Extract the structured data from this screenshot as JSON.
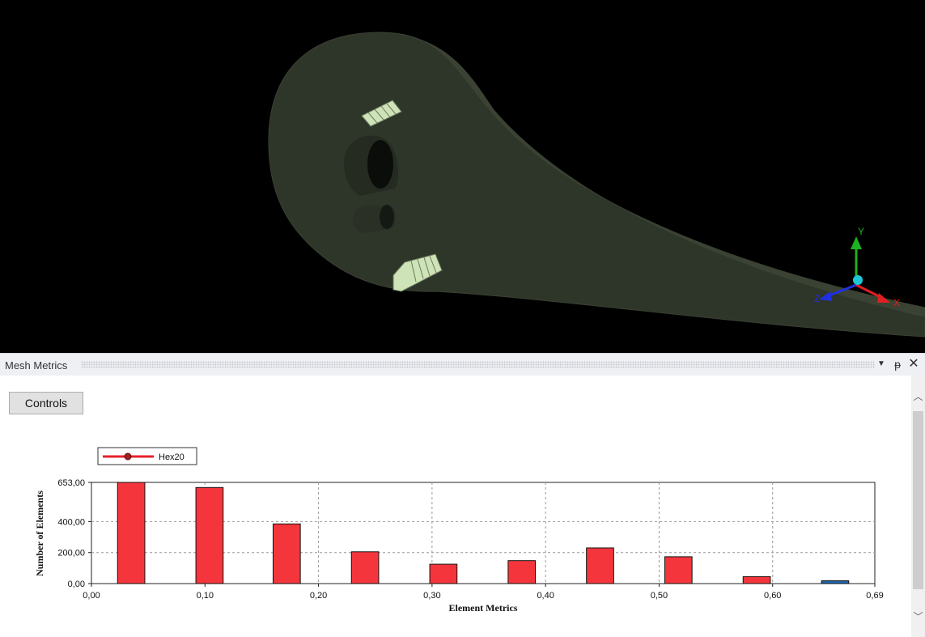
{
  "viewport": {
    "axis_labels": {
      "x": "X",
      "y": "Y",
      "z": "Z"
    },
    "colors": {
      "model": "#2e3529",
      "model_edge": "#3d4536",
      "mesh": "#cfe3b8",
      "axis_x": "#e02020",
      "axis_y": "#1fb01f",
      "axis_z": "#2030e0",
      "axis_center": "#1ec7d6"
    }
  },
  "panel": {
    "title": "Mesh Metrics",
    "pin_icon": "pin-icon",
    "close_icon": "close-icon",
    "menu_icon": "dropdown-arrow-icon",
    "controls_label": "Controls"
  },
  "chart_data": {
    "type": "bar",
    "legend": "Hex20",
    "xlabel": "Element Metrics",
    "ylabel": "Number of Elements",
    "xlim": [
      0.0,
      0.69
    ],
    "ylim": [
      0.0,
      653.0
    ],
    "xticks": [
      "0,00",
      "0,10",
      "0,20",
      "0,30",
      "0,40",
      "0,50",
      "0,60",
      "0,69"
    ],
    "xtick_values": [
      0.0,
      0.1,
      0.2,
      0.3,
      0.4,
      0.5,
      0.6,
      0.69
    ],
    "yticks": [
      "0,00",
      "200,00",
      "400,00",
      "653,00"
    ],
    "ytick_values": [
      0,
      200,
      400,
      653
    ],
    "bar_width": 0.024,
    "bars": [
      {
        "x": 0.035,
        "value": 653,
        "color": "#f4363c"
      },
      {
        "x": 0.104,
        "value": 620,
        "color": "#f4363c"
      },
      {
        "x": 0.172,
        "value": 385,
        "color": "#f4363c"
      },
      {
        "x": 0.241,
        "value": 205,
        "color": "#f4363c"
      },
      {
        "x": 0.31,
        "value": 125,
        "color": "#f4363c"
      },
      {
        "x": 0.379,
        "value": 148,
        "color": "#f4363c"
      },
      {
        "x": 0.448,
        "value": 230,
        "color": "#f4363c"
      },
      {
        "x": 0.517,
        "value": 173,
        "color": "#f4363c"
      },
      {
        "x": 0.586,
        "value": 45,
        "color": "#f4363c"
      },
      {
        "x": 0.655,
        "value": 18,
        "color": "#2066b0"
      }
    ]
  }
}
